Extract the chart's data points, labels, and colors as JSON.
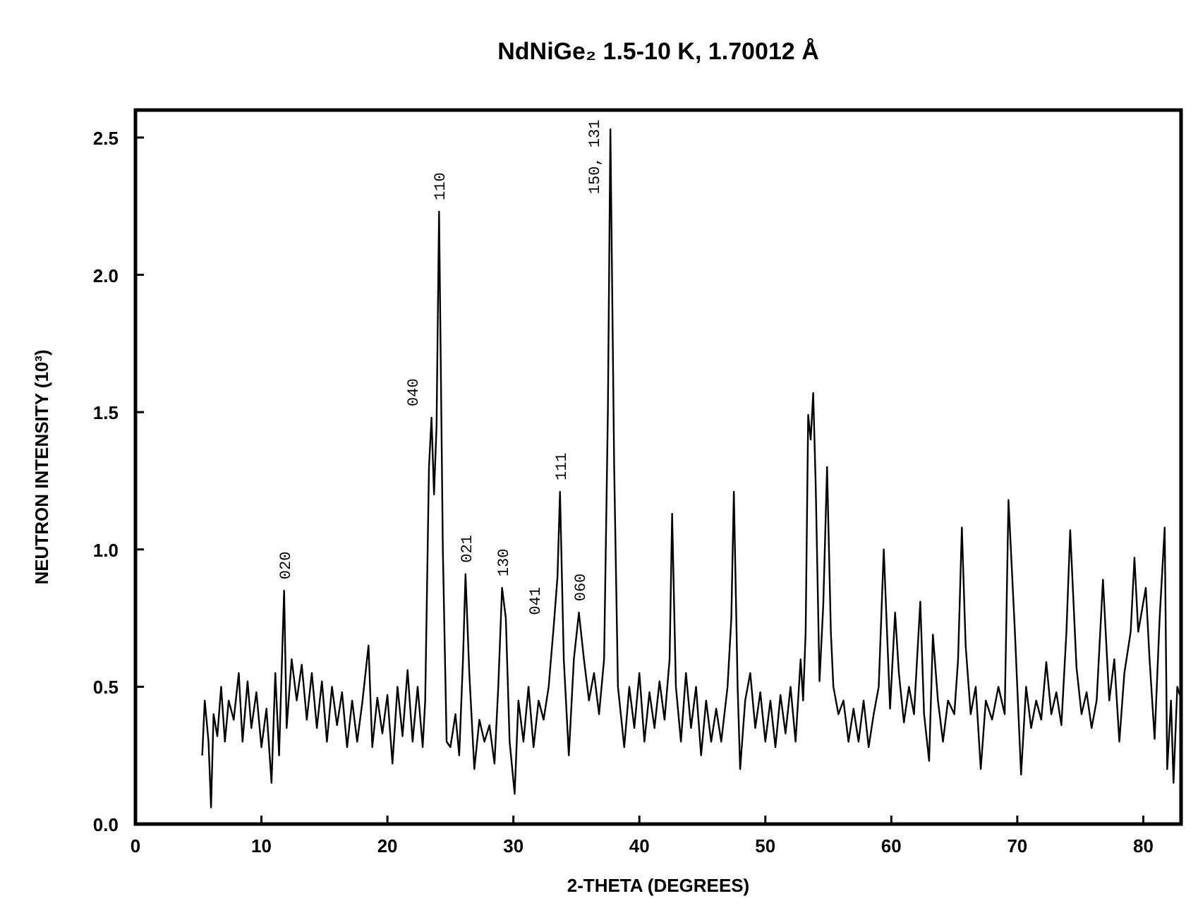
{
  "chart_data": {
    "type": "line",
    "title": "NdNiGe₂ 1.5-10 K, 1.70012 Å",
    "xlabel": "2-THETA (DEGREES)",
    "ylabel": "NEUTRON INTENSITY (10³)",
    "x": [
      5.3,
      5.5,
      5.8,
      6.0,
      6.2,
      6.5,
      6.8,
      7.1,
      7.4,
      7.8,
      8.2,
      8.5,
      8.9,
      9.2,
      9.6,
      10.0,
      10.4,
      10.8,
      11.1,
      11.4,
      11.8,
      12.0,
      12.4,
      12.8,
      13.2,
      13.6,
      14.0,
      14.4,
      14.8,
      15.2,
      15.6,
      16.0,
      16.4,
      16.8,
      17.2,
      17.6,
      18.0,
      18.5,
      18.8,
      19.2,
      19.6,
      20.0,
      20.4,
      20.8,
      21.2,
      21.6,
      22.0,
      22.4,
      22.8,
      23.0,
      23.3,
      23.5,
      23.7,
      23.9,
      24.1,
      24.4,
      24.7,
      25.0,
      25.4,
      25.7,
      26.0,
      26.2,
      26.5,
      26.9,
      27.3,
      27.7,
      28.1,
      28.5,
      28.8,
      29.1,
      29.4,
      29.7,
      30.1,
      30.4,
      30.8,
      31.2,
      31.6,
      32.0,
      32.4,
      32.8,
      33.2,
      33.5,
      33.7,
      34.0,
      34.4,
      34.8,
      35.2,
      35.6,
      36.0,
      36.4,
      36.8,
      37.2,
      37.5,
      37.7,
      38.0,
      38.3,
      38.8,
      39.2,
      39.6,
      40.0,
      40.4,
      40.8,
      41.2,
      41.6,
      42.0,
      42.4,
      42.6,
      42.9,
      43.3,
      43.7,
      44.1,
      44.5,
      44.9,
      45.3,
      45.7,
      46.1,
      46.5,
      47.0,
      47.3,
      47.5,
      47.8,
      48.0,
      48.4,
      48.8,
      49.2,
      49.6,
      50.0,
      50.4,
      50.8,
      51.2,
      51.6,
      52.0,
      52.4,
      52.8,
      53.0,
      53.2,
      53.4,
      53.6,
      53.8,
      54.0,
      54.3,
      54.6,
      54.9,
      55.2,
      55.4,
      55.8,
      56.2,
      56.6,
      57.0,
      57.4,
      57.8,
      58.2,
      58.6,
      59.0,
      59.4,
      59.9,
      60.3,
      60.6,
      61.0,
      61.4,
      61.8,
      62.3,
      62.6,
      63.0,
      63.3,
      63.7,
      64.1,
      64.5,
      65.0,
      65.3,
      65.6,
      65.9,
      66.3,
      66.7,
      67.1,
      67.5,
      68.0,
      68.5,
      69.0,
      69.3,
      69.8,
      70.3,
      70.7,
      71.1,
      71.5,
      71.9,
      72.3,
      72.7,
      73.1,
      73.5,
      73.9,
      74.2,
      74.7,
      75.1,
      75.5,
      75.9,
      76.3,
      76.8,
      77.3,
      77.7,
      78.1,
      78.5,
      79.0,
      79.3,
      79.6,
      80.2,
      80.5,
      80.9,
      81.3,
      81.7,
      81.9,
      82.2,
      82.4,
      82.7,
      82.9
    ],
    "series": [
      {
        "color": "#000000",
        "values": [
          0.25,
          0.45,
          0.3,
          0.06,
          0.4,
          0.32,
          0.5,
          0.3,
          0.45,
          0.38,
          0.55,
          0.3,
          0.52,
          0.35,
          0.48,
          0.28,
          0.42,
          0.15,
          0.55,
          0.25,
          0.85,
          0.35,
          0.6,
          0.45,
          0.58,
          0.38,
          0.55,
          0.35,
          0.52,
          0.3,
          0.5,
          0.36,
          0.48,
          0.28,
          0.45,
          0.3,
          0.44,
          0.65,
          0.28,
          0.46,
          0.33,
          0.47,
          0.22,
          0.5,
          0.32,
          0.56,
          0.3,
          0.5,
          0.28,
          0.45,
          1.3,
          1.48,
          1.2,
          1.45,
          2.23,
          1.0,
          0.3,
          0.28,
          0.4,
          0.25,
          0.6,
          0.91,
          0.55,
          0.2,
          0.38,
          0.3,
          0.36,
          0.22,
          0.5,
          0.86,
          0.75,
          0.3,
          0.11,
          0.45,
          0.3,
          0.5,
          0.28,
          0.45,
          0.38,
          0.5,
          0.72,
          0.9,
          1.21,
          0.6,
          0.25,
          0.6,
          0.77,
          0.6,
          0.45,
          0.55,
          0.4,
          0.6,
          1.5,
          2.53,
          1.3,
          0.5,
          0.28,
          0.5,
          0.35,
          0.55,
          0.3,
          0.48,
          0.35,
          0.52,
          0.38,
          0.6,
          1.13,
          0.5,
          0.3,
          0.55,
          0.35,
          0.5,
          0.25,
          0.45,
          0.3,
          0.42,
          0.3,
          0.5,
          0.75,
          1.21,
          0.5,
          0.2,
          0.45,
          0.55,
          0.35,
          0.48,
          0.3,
          0.45,
          0.28,
          0.47,
          0.33,
          0.5,
          0.3,
          0.6,
          0.45,
          0.7,
          1.49,
          1.4,
          1.57,
          1.23,
          0.52,
          0.8,
          1.3,
          0.7,
          0.5,
          0.4,
          0.45,
          0.3,
          0.42,
          0.3,
          0.45,
          0.28,
          0.4,
          0.5,
          1.0,
          0.42,
          0.77,
          0.55,
          0.37,
          0.5,
          0.4,
          0.81,
          0.4,
          0.23,
          0.69,
          0.45,
          0.3,
          0.45,
          0.4,
          0.6,
          1.08,
          0.65,
          0.4,
          0.5,
          0.2,
          0.45,
          0.38,
          0.5,
          0.4,
          1.18,
          0.71,
          0.18,
          0.5,
          0.35,
          0.45,
          0.38,
          0.59,
          0.4,
          0.48,
          0.36,
          0.7,
          1.07,
          0.57,
          0.4,
          0.48,
          0.35,
          0.45,
          0.89,
          0.45,
          0.6,
          0.3,
          0.55,
          0.7,
          0.97,
          0.7,
          0.86,
          0.6,
          0.31,
          0.75,
          1.08,
          0.2,
          0.45,
          0.15,
          0.5,
          0.47
        ]
      }
    ],
    "xlim": [
      0,
      83
    ],
    "xticks": [
      0,
      10,
      20,
      30,
      40,
      50,
      60,
      70,
      80
    ],
    "ylim": [
      0,
      2.6
    ],
    "yticks": [
      {
        "value": 0,
        "label": "0.0"
      },
      {
        "value": 0.5,
        "label": "0.5"
      },
      {
        "value": 1,
        "label": "1.0"
      },
      {
        "value": 1.5,
        "label": "1.5"
      },
      {
        "value": 2,
        "label": "2.0"
      },
      {
        "value": 2.5,
        "label": "2.5"
      }
    ],
    "grid": false,
    "marker": "none",
    "line_style": "solid",
    "annotations": [
      {
        "text": "020",
        "x": 11.8,
        "y": 0.85
      },
      {
        "text": "040",
        "x": 23.5,
        "y": 1.48
      },
      {
        "text": "110",
        "x": 24.1,
        "y": 2.23
      },
      {
        "text": "021",
        "x": 26.2,
        "y": 0.91
      },
      {
        "text": "130",
        "x": 29.1,
        "y": 0.86
      },
      {
        "text": "041",
        "x": 33.2,
        "y": 0.72
      },
      {
        "text": "111",
        "x": 33.7,
        "y": 1.21
      },
      {
        "text": "060",
        "x": 35.2,
        "y": 0.77
      },
      {
        "text": "150, 131",
        "x": 37.7,
        "y": 2.53
      }
    ]
  }
}
